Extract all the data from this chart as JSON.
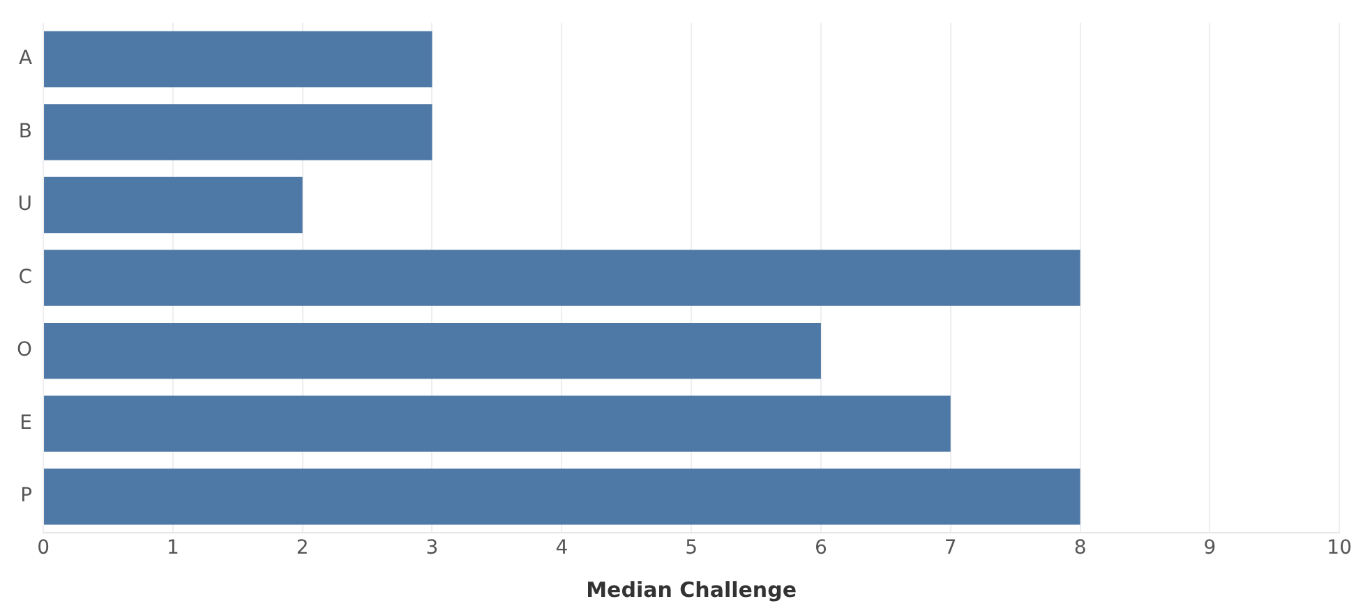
{
  "chart_data": {
    "type": "bar",
    "orientation": "horizontal",
    "xlabel": "Median Challenge",
    "categories": [
      "A",
      "B",
      "U",
      "C",
      "O",
      "E",
      "P"
    ],
    "values": [
      3,
      3,
      2,
      8,
      6,
      7,
      8
    ],
    "color": "#4e79a7",
    "xlim": [
      0,
      10
    ],
    "xticks": [
      0,
      1,
      2,
      3,
      4,
      5,
      6,
      7,
      8,
      9,
      10
    ],
    "grid": "x",
    "legend": false
  }
}
